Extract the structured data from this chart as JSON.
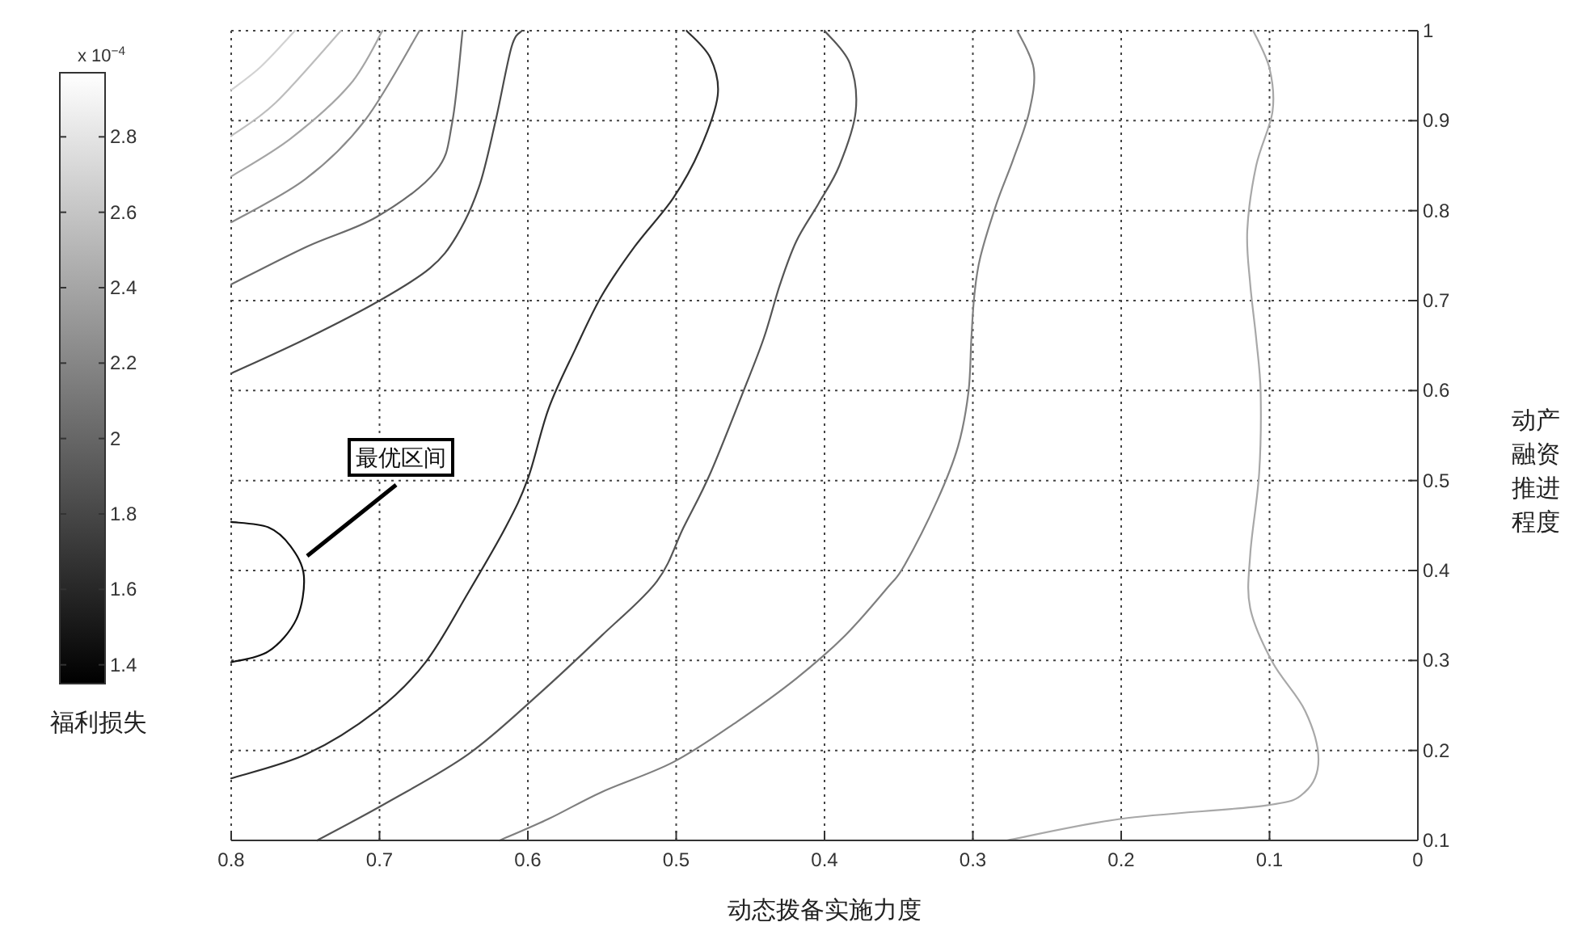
{
  "chart_data": {
    "type": "line",
    "xlabel": "动态拨备实施力度",
    "ylabel": "动产融资推进程度",
    "clabel": "福利损失",
    "xlim": [
      0.8,
      0
    ],
    "xticks": [
      0.8,
      0.7,
      0.6,
      0.5,
      0.4,
      0.3,
      0.2,
      0.1,
      0
    ],
    "ylim": [
      0.1,
      1
    ],
    "yticks": [
      0.1,
      0.2,
      0.3,
      0.4,
      0.5,
      0.6,
      0.7,
      0.8,
      0.9,
      1
    ],
    "clim": [
      1.35,
      2.97
    ],
    "cticks": [
      1.4,
      1.6,
      1.8,
      2,
      2.2,
      2.4,
      2.6,
      2.8
    ],
    "grid": true,
    "line_style": "solid",
    "marker": "none",
    "annotations": [
      "最优区间",
      "x 10$^{−4}$"
    ],
    "series": [
      {
        "color": "#d2d2d2",
        "x": [
          0.8,
          0.78,
          0.757
        ],
        "values": [
          0.934,
          0.96,
          1.0
        ]
      },
      {
        "color": "#bdbdbd",
        "x": [
          0.8,
          0.77,
          0.726
        ],
        "values": [
          0.883,
          0.92,
          1.0
        ]
      },
      {
        "color": "#a5a5a5",
        "x": [
          0.8,
          0.76,
          0.72,
          0.698
        ],
        "values": [
          0.838,
          0.88,
          0.94,
          1.0
        ]
      },
      {
        "color": "#8a8a8a",
        "x": [
          0.8,
          0.75,
          0.71,
          0.673
        ],
        "values": [
          0.787,
          0.835,
          0.9,
          1.0
        ]
      },
      {
        "color": "#6a6a6a",
        "x": [
          0.8,
          0.749,
          0.702,
          0.662,
          0.651,
          0.644
        ],
        "values": [
          0.718,
          0.76,
          0.793,
          0.844,
          0.898,
          1.0
        ]
      },
      {
        "color": "#4a4a4a",
        "x": [
          0.8,
          0.749,
          0.7,
          0.666,
          0.648,
          0.633,
          0.622,
          0.611,
          0.604
        ],
        "values": [
          0.619,
          0.658,
          0.7,
          0.736,
          0.772,
          0.826,
          0.898,
          0.982,
          1.0
        ]
      },
      {
        "color": "#111111",
        "x": [
          0.8,
          0.775,
          0.76,
          0.751,
          0.756,
          0.775,
          0.8
        ],
        "values": [
          0.454,
          0.448,
          0.427,
          0.394,
          0.346,
          0.31,
          0.298
        ]
      },
      {
        "color": "#2e2e2e",
        "x": [
          0.8,
          0.749,
          0.702,
          0.669,
          0.64,
          0.615,
          0.6,
          0.586,
          0.568,
          0.55,
          0.528,
          0.502,
          0.484,
          0.472,
          0.477,
          0.493
        ],
        "values": [
          0.169,
          0.196,
          0.244,
          0.298,
          0.376,
          0.448,
          0.502,
          0.58,
          0.646,
          0.706,
          0.76,
          0.814,
          0.868,
          0.928,
          0.97,
          1.0
        ]
      },
      {
        "color": "#555555",
        "x": [
          0.742,
          0.695,
          0.64,
          0.593,
          0.55,
          0.513,
          0.495,
          0.477,
          0.455,
          0.441,
          0.43,
          0.419,
          0.404,
          0.39,
          0.379,
          0.383,
          0.4
        ],
        "values": [
          0.1,
          0.142,
          0.196,
          0.262,
          0.328,
          0.388,
          0.448,
          0.508,
          0.598,
          0.658,
          0.718,
          0.766,
          0.808,
          0.85,
          0.91,
          0.964,
          1.0
        ]
      },
      {
        "color": "#7f7f7f",
        "x": [
          0.619,
          0.586,
          0.55,
          0.502,
          0.459,
          0.419,
          0.386,
          0.357,
          0.346,
          0.324,
          0.31,
          0.303,
          0.301,
          0.299,
          0.295,
          0.284,
          0.273,
          0.262,
          0.259,
          0.27
        ],
        "values": [
          0.1,
          0.124,
          0.154,
          0.187,
          0.232,
          0.28,
          0.328,
          0.382,
          0.406,
          0.478,
          0.538,
          0.598,
          0.658,
          0.706,
          0.748,
          0.808,
          0.856,
          0.91,
          0.958,
          1.0
        ]
      },
      {
        "color": "#a8a8a8",
        "x": [
          0.277,
          0.2,
          0.102,
          0.076,
          0.067,
          0.076,
          0.098,
          0.113,
          0.113,
          0.107,
          0.106,
          0.109,
          0.113,
          0.115,
          0.109,
          0.098,
          0.1,
          0.111
        ],
        "values": [
          0.1,
          0.124,
          0.139,
          0.154,
          0.19,
          0.244,
          0.298,
          0.358,
          0.418,
          0.508,
          0.598,
          0.658,
          0.718,
          0.778,
          0.85,
          0.91,
          0.958,
          1.0
        ]
      }
    ]
  }
}
